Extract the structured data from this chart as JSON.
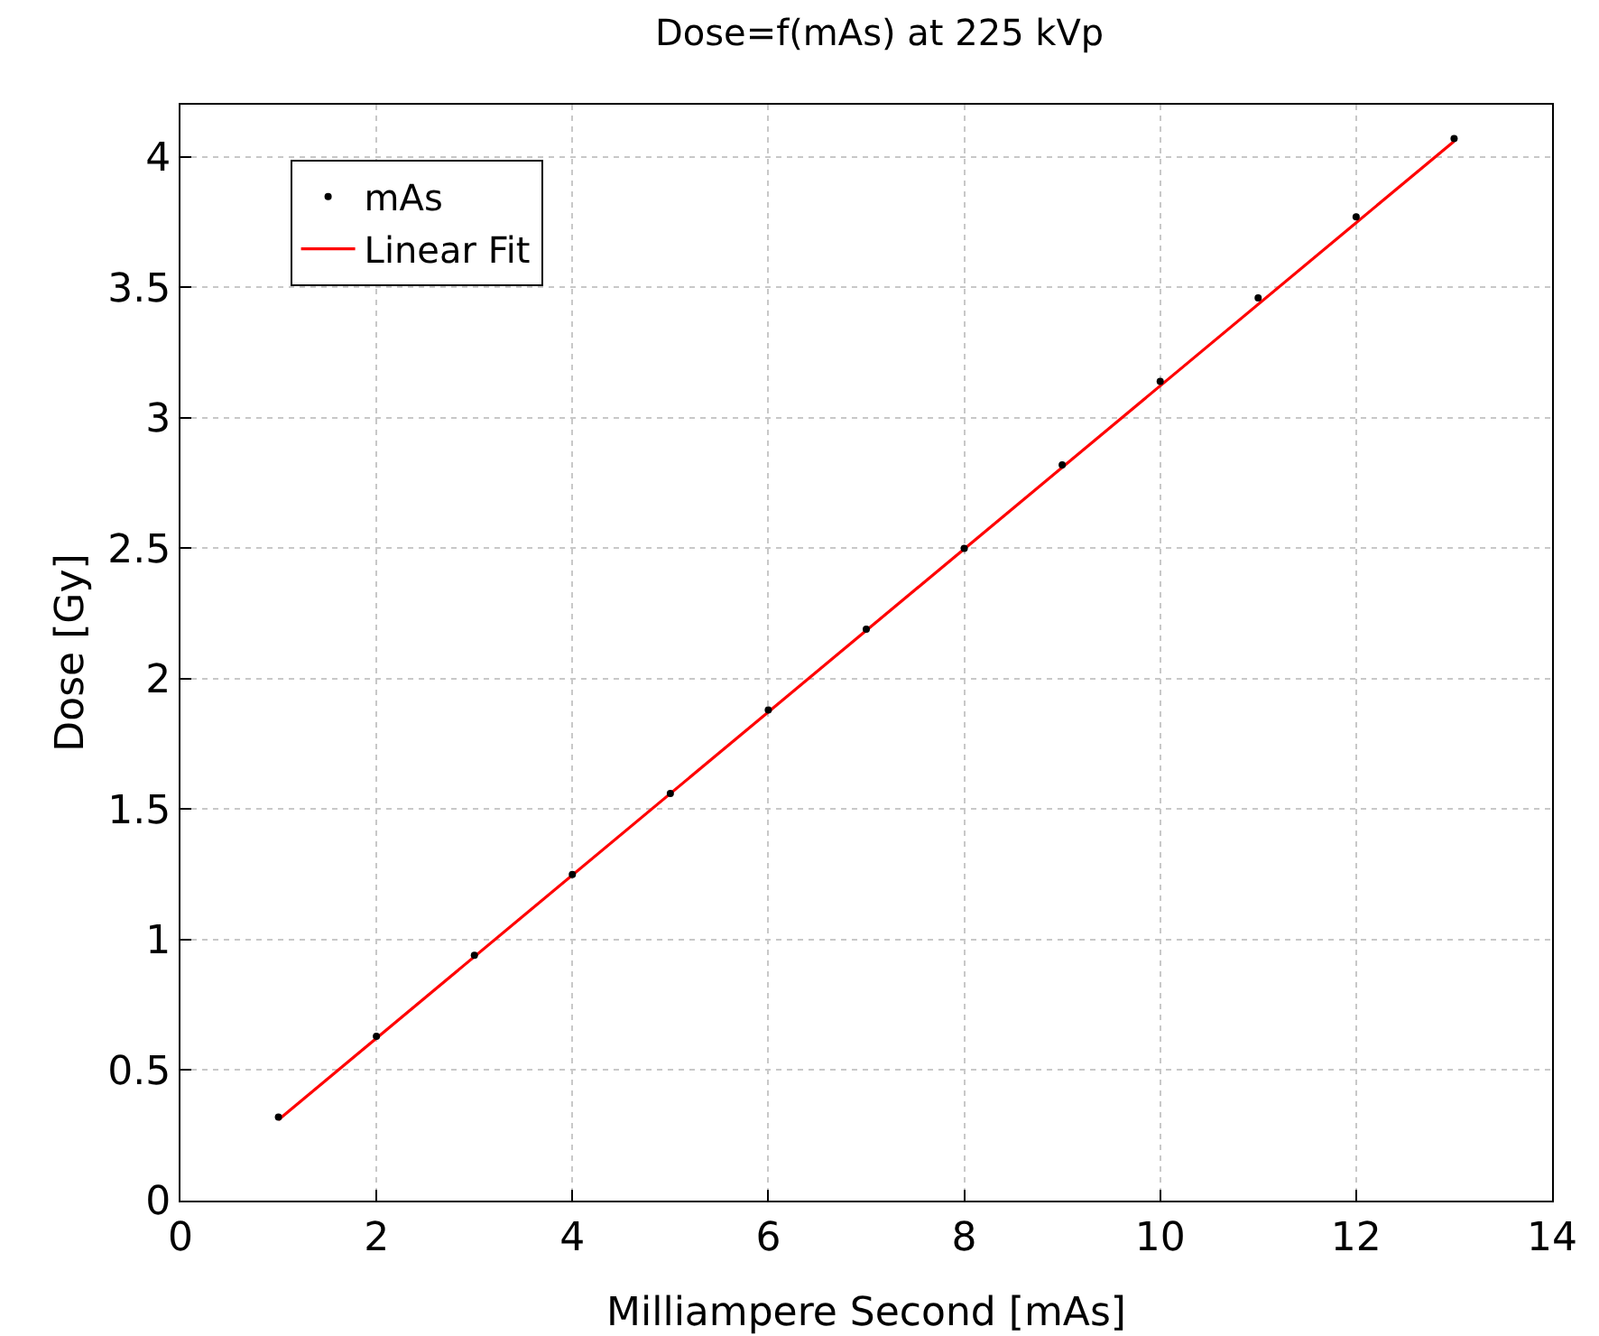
{
  "chart_data": {
    "type": "scatter",
    "title": "Dose=f(mAs) at 225 kVp",
    "xlabel": "Milliampere Second [mAs]",
    "ylabel": "Dose [Gy]",
    "x": [
      1,
      2,
      3,
      4,
      5,
      6,
      7,
      8,
      9,
      10,
      11,
      12,
      13
    ],
    "series": [
      {
        "name": "mAs",
        "color": "#000000",
        "marker": "circle",
        "values": [
          0.32,
          0.63,
          0.94,
          1.25,
          1.56,
          1.88,
          2.19,
          2.5,
          2.82,
          3.14,
          3.46,
          3.77,
          4.07
        ]
      },
      {
        "name": "Linear Fit",
        "type": "line",
        "color": "#ff0000",
        "x": [
          1,
          13
        ],
        "values": [
          0.31,
          4.06
        ]
      }
    ],
    "xlim": [
      0,
      14
    ],
    "xticks": [
      0,
      2,
      4,
      6,
      8,
      10,
      12,
      14
    ],
    "ylim": [
      0,
      4.2
    ],
    "yticks": [
      0,
      0.5,
      1,
      1.5,
      2,
      2.5,
      3,
      3.5,
      4
    ],
    "grid": true,
    "legend": "top left",
    "line_style": "solid"
  }
}
